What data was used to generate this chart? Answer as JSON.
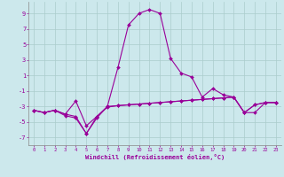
{
  "x": [
    0,
    1,
    2,
    3,
    4,
    5,
    6,
    7,
    8,
    9,
    10,
    11,
    12,
    13,
    14,
    15,
    16,
    17,
    18,
    19,
    20,
    21,
    22,
    23
  ],
  "line1": [
    -3.5,
    -3.8,
    -3.5,
    -4.2,
    -4.5,
    -6.5,
    -4.5,
    -3.0,
    2.0,
    7.5,
    9.0,
    9.5,
    9.0,
    3.2,
    1.3,
    0.8,
    -1.8,
    -0.7,
    -1.5,
    -1.8,
    -3.8,
    -2.8,
    -2.5,
    -2.5
  ],
  "line2": [
    -3.5,
    -3.8,
    -3.5,
    -4.0,
    -2.3,
    -5.5,
    -4.3,
    -3.0,
    -2.9,
    -2.8,
    -2.7,
    -2.6,
    -2.5,
    -2.4,
    -2.3,
    -2.2,
    -2.1,
    -2.0,
    -1.9,
    -1.8,
    -3.8,
    -2.8,
    -2.5,
    -2.5
  ],
  "line3": [
    -3.5,
    -3.8,
    -3.5,
    -4.0,
    -4.3,
    -6.5,
    -4.3,
    -3.1,
    -2.9,
    -2.8,
    -2.7,
    -2.6,
    -2.5,
    -2.4,
    -2.3,
    -2.2,
    -2.1,
    -2.0,
    -1.9,
    -1.8,
    -3.8,
    -3.8,
    -2.5,
    -2.5
  ],
  "ylim": [
    -8,
    10.5
  ],
  "yticks": [
    -7,
    -5,
    -3,
    -1,
    1,
    3,
    5,
    7,
    9
  ],
  "xticks": [
    0,
    1,
    2,
    3,
    4,
    5,
    6,
    7,
    8,
    9,
    10,
    11,
    12,
    13,
    14,
    15,
    16,
    17,
    18,
    19,
    20,
    21,
    22,
    23
  ],
  "xlabel": "Windchill (Refroidissement éolien,°C)",
  "bg_color": "#cce8ec",
  "line_color": "#990099",
  "grid_color": "#aacccc",
  "spine_color": "#888888"
}
